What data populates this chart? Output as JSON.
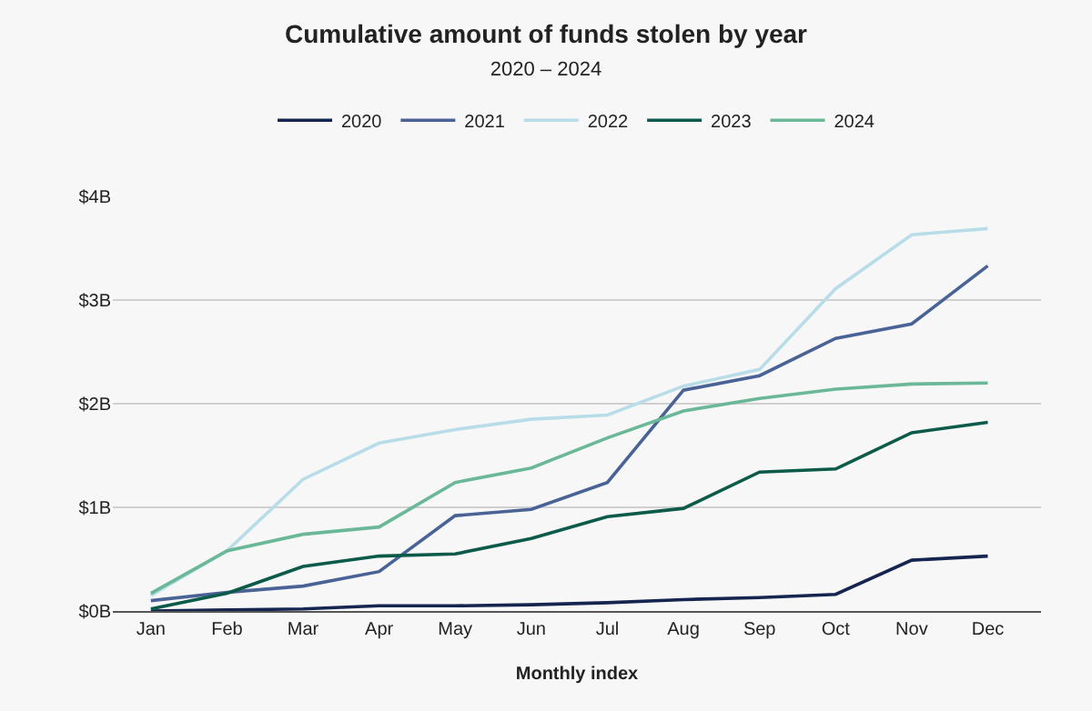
{
  "chart_data": {
    "type": "line",
    "title": "Cumulative amount of funds stolen by year",
    "subtitle": "2020 – 2024",
    "xlabel": "Monthly index",
    "categories": [
      "Jan",
      "Feb",
      "Mar",
      "Apr",
      "May",
      "Jun",
      "Jul",
      "Aug",
      "Sep",
      "Oct",
      "Nov",
      "Dec"
    ],
    "series": [
      {
        "name": "2020",
        "color": "#15254f",
        "values": [
          0.0,
          0.01,
          0.02,
          0.05,
          0.05,
          0.06,
          0.08,
          0.11,
          0.13,
          0.16,
          0.49,
          0.53
        ]
      },
      {
        "name": "2021",
        "color": "#4a6396",
        "values": [
          0.1,
          0.18,
          0.24,
          0.38,
          0.92,
          0.98,
          1.24,
          2.13,
          2.27,
          2.63,
          2.77,
          3.33
        ]
      },
      {
        "name": "2022",
        "color": "#b8dde9",
        "values": [
          0.15,
          0.58,
          1.27,
          1.62,
          1.75,
          1.85,
          1.89,
          2.17,
          2.33,
          3.11,
          3.63,
          3.69
        ]
      },
      {
        "name": "2023",
        "color": "#0b5a4a",
        "values": [
          0.02,
          0.17,
          0.43,
          0.53,
          0.55,
          0.7,
          0.91,
          0.99,
          1.34,
          1.37,
          1.72,
          1.82
        ]
      },
      {
        "name": "2024",
        "color": "#6ab897",
        "values": [
          0.17,
          0.58,
          0.74,
          0.81,
          1.24,
          1.38,
          1.67,
          1.93,
          2.05,
          2.14,
          2.19,
          2.2
        ]
      }
    ],
    "ylim": [
      0,
      4
    ],
    "yticks": [
      {
        "value": 0,
        "label": "$0B"
      },
      {
        "value": 1,
        "label": "$1B"
      },
      {
        "value": 2,
        "label": "$2B"
      },
      {
        "value": 3,
        "label": "$3B"
      },
      {
        "value": 4,
        "label": "$4B"
      }
    ],
    "grid": "y",
    "legend": "top",
    "marker": "none",
    "line_style": "solid"
  }
}
